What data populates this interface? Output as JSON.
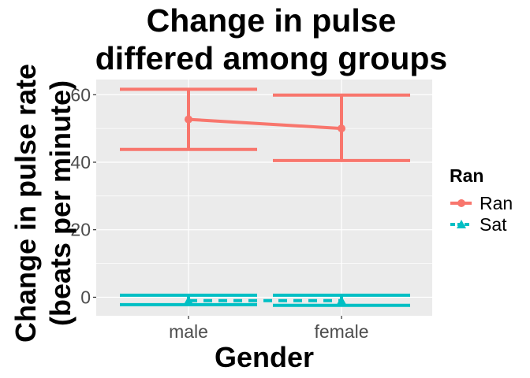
{
  "chart_data": {
    "type": "line",
    "title": [
      "Change in pulse",
      "differed among groups"
    ],
    "xlabel": "Gender",
    "ylabel": [
      "Change in pulse rate",
      "(beats per minute)"
    ],
    "categories": [
      "male",
      "female"
    ],
    "ylim": [
      -5.5,
      64.5
    ],
    "yticks": [
      0,
      20,
      40,
      60
    ],
    "grid": true,
    "legend": {
      "title": "Ran",
      "position": "right"
    },
    "series": [
      {
        "name": "Ran",
        "color": "#F8766D",
        "marker": "circle",
        "linestyle": "solid",
        "values": [
          52.7,
          50.0
        ],
        "lower": [
          43.8,
          40.5
        ],
        "upper": [
          61.6,
          59.9
        ]
      },
      {
        "name": "Sat",
        "color": "#00BFC4",
        "marker": "triangle",
        "linestyle": "dashed",
        "values": [
          -1.0,
          -1.0
        ],
        "lower": [
          -2.2,
          -2.4
        ],
        "upper": [
          0.6,
          0.6
        ]
      }
    ]
  }
}
